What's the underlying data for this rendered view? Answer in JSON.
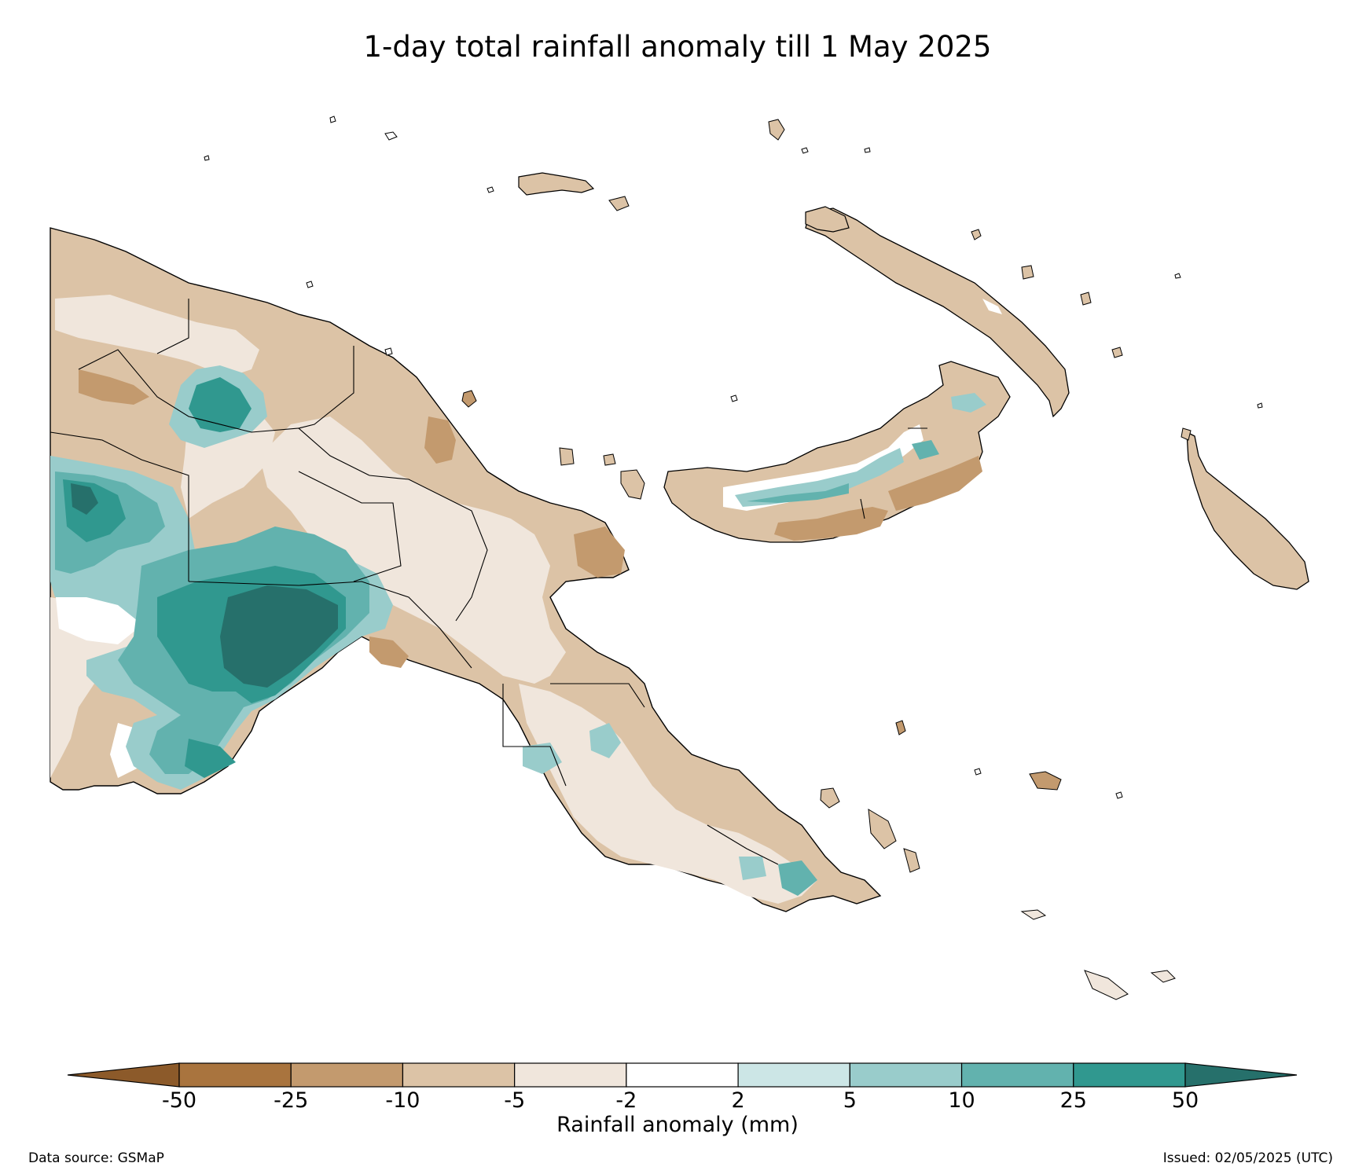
{
  "title": "1-day total rainfall anomaly till 1 May 2025",
  "colorbar": {
    "label": "Rainfall anomaly (mm)",
    "ticks": [
      "-50",
      "-25",
      "-10",
      "-5",
      "-2",
      "2",
      "5",
      "10",
      "25",
      "50"
    ],
    "under_color": "#8c5a2a",
    "over_color": "#26706b",
    "bins": [
      {
        "range": "-50 to -25",
        "color": "#a9743e"
      },
      {
        "range": "-25 to -10",
        "color": "#c39a6e"
      },
      {
        "range": "-10 to -5",
        "color": "#dcc3a6"
      },
      {
        "range": "-5 to -2",
        "color": "#f0e6dc"
      },
      {
        "range": "-2 to 2",
        "color": "#ffffff"
      },
      {
        "range": "2 to 5",
        "color": "#cce6e6"
      },
      {
        "range": "5 to 10",
        "color": "#99cccb"
      },
      {
        "range": "10 to 25",
        "color": "#62b2ae"
      },
      {
        "range": "25 to 50",
        "color": "#30988f"
      }
    ]
  },
  "footer": {
    "source": "Data source: GSMaP",
    "issued": "Issued: 02/05/2025 (UTC)"
  }
}
